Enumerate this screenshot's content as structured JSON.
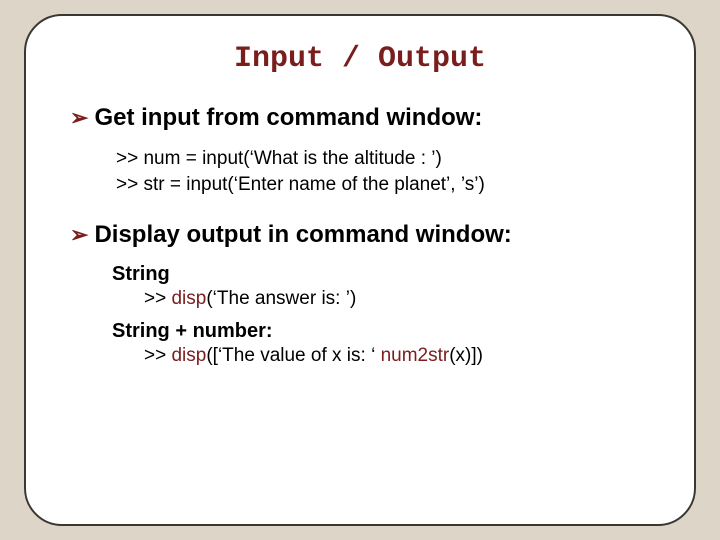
{
  "colors": {
    "page_bg": "#dcd5c8",
    "slide_bg": "#ffffff",
    "slide_border": "#3a3632",
    "accent": "#7a1d1d",
    "text": "#000000"
  },
  "layout": {
    "slide_width": 672,
    "slide_height": 512,
    "slide_border_radius": 38,
    "slide_border_width": 2,
    "title_font": "Courier New",
    "body_font": "Arial"
  },
  "title": {
    "text": "Input / Output",
    "fontsize": 30
  },
  "bullets": [
    {
      "glyph": "➢",
      "text": "Get input from command window:",
      "fontsize": 24,
      "code": {
        "fontsize": 19,
        "lines": [
          ">> num = input(‘What is the altitude : ’)",
          ">> str = input(‘Enter name of the planet’, ’s’)"
        ]
      }
    },
    {
      "glyph": "➢",
      "text": "Display output in command window:",
      "fontsize": 24,
      "examples": [
        {
          "label": "String",
          "label_fontsize": 20,
          "line_fontsize": 19,
          "prefix": ">> ",
          "fn": "disp",
          "args": "(‘The answer is: ’)"
        },
        {
          "label": "String + number:",
          "label_fontsize": 20,
          "line_fontsize": 19,
          "prefix": ">> ",
          "fn": "disp",
          "args_open": "([‘The value of x is: ‘ ",
          "inner_fn": "num2str",
          "args_close": "(x)])"
        }
      ]
    }
  ]
}
